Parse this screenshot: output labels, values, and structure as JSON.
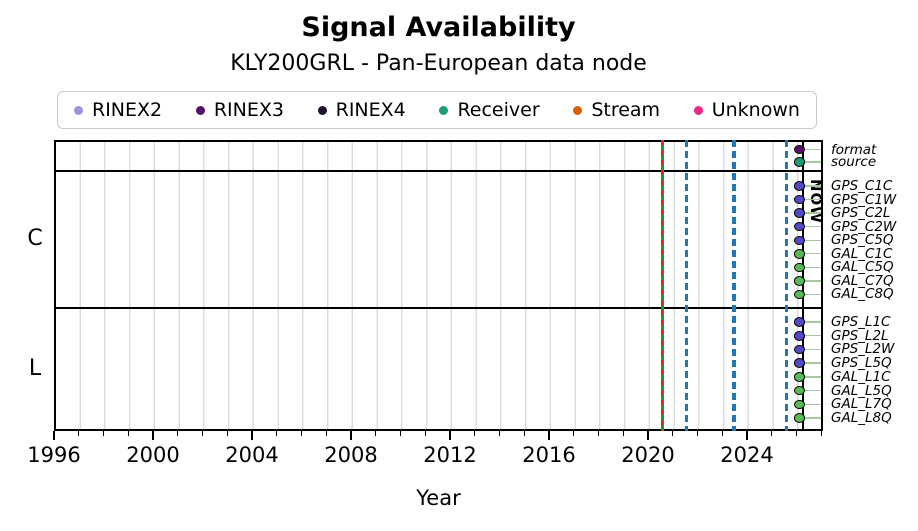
{
  "chart_data": {
    "type": "scatter",
    "title": "Signal Availability",
    "subtitle": "KLY200GRL - Pan-European data node",
    "xlabel": "Year",
    "x_range": [
      1996,
      2027.1
    ],
    "x_major_ticks": [
      1996,
      2000,
      2004,
      2008,
      2012,
      2016,
      2020,
      2024
    ],
    "x_minor_tick_interval_years": 1,
    "grid": "vertical-yearly-lightgray",
    "legend": {
      "position": "top",
      "items": [
        {
          "label": "RINEX2",
          "color": "#9b94d6"
        },
        {
          "label": "RINEX3",
          "color": "#55106a"
        },
        {
          "label": "RINEX4",
          "color": "#221033"
        },
        {
          "label": "Receiver",
          "color": "#1b9e77"
        },
        {
          "label": "Stream",
          "color": "#d95f02"
        },
        {
          "label": "Unknown",
          "color": "#e7298a"
        }
      ]
    },
    "now_label": "NOW",
    "now_year": 2026.26,
    "marker_year": 2026.12,
    "marker_colors": {
      "gps": "#5249c8",
      "gal": "#57b957",
      "rinex3": "#55106a",
      "receiver": "#1b9e77"
    },
    "leader_line_color": "#a6c7a0",
    "sections": [
      {
        "label": "",
        "rows": [
          {
            "label": "format",
            "color_key": "rinex3"
          },
          {
            "label": "source",
            "color_key": "receiver"
          }
        ]
      },
      {
        "label": "C",
        "rows": [
          {
            "label": "GPS_C1C",
            "color_key": "gps"
          },
          {
            "label": "GPS_C1W",
            "color_key": "gps"
          },
          {
            "label": "GPS_C2L",
            "color_key": "gps"
          },
          {
            "label": "GPS_C2W",
            "color_key": "gps"
          },
          {
            "label": "GPS_C5Q",
            "color_key": "gps"
          },
          {
            "label": "GAL_C1C",
            "color_key": "gal"
          },
          {
            "label": "GAL_C5Q",
            "color_key": "gal"
          },
          {
            "label": "GAL_C7Q",
            "color_key": "gal"
          },
          {
            "label": "GAL_C8Q",
            "color_key": "gal"
          }
        ]
      },
      {
        "label": "L",
        "rows": [
          {
            "label": "GPS_L1C",
            "color_key": "gps"
          },
          {
            "label": "GPS_L2L",
            "color_key": "gps"
          },
          {
            "label": "GPS_L2W",
            "color_key": "gps"
          },
          {
            "label": "GPS_L5Q",
            "color_key": "gps"
          },
          {
            "label": "GAL_L1C",
            "color_key": "gal"
          },
          {
            "label": "GAL_L5Q",
            "color_key": "gal"
          },
          {
            "label": "GAL_L7Q",
            "color_key": "gal"
          },
          {
            "label": "GAL_L8Q",
            "color_key": "gal"
          }
        ]
      }
    ],
    "vlines": [
      {
        "name": "green-event-line",
        "year": 2020.57,
        "style": "solid",
        "color": "#239b23",
        "width": 3,
        "dash": null
      },
      {
        "name": "red-dashed-event-line",
        "year": 2020.57,
        "style": "dashed",
        "color": "#dd2222",
        "width": 2.6,
        "dash": [
          5,
          5
        ]
      },
      {
        "name": "blue-dashed-line-1",
        "year": 2021.54,
        "style": "dashed",
        "color": "#1f77b4",
        "width": 3,
        "dash": [
          7,
          4
        ]
      },
      {
        "name": "blue-dashed-line-2",
        "year": 2023.47,
        "style": "dashed",
        "color": "#1f77b4",
        "width": 4.6,
        "dash": [
          7,
          4
        ]
      },
      {
        "name": "blue-dashed-line-3",
        "year": 2025.58,
        "style": "dashed",
        "color": "#1f77b4",
        "width": 3,
        "dash": [
          7,
          4
        ]
      },
      {
        "name": "now-line",
        "year": 2026.26,
        "style": "solid",
        "color": "#000000",
        "width": 2.6,
        "dash": null
      }
    ]
  }
}
